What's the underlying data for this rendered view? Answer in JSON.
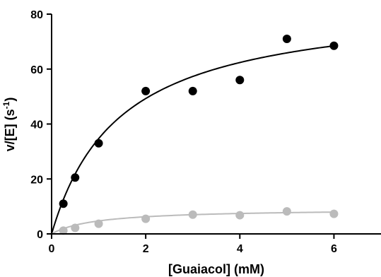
{
  "chart_data": {
    "type": "scatter",
    "xlabel": "[Guaiacol] (mM)",
    "ylabel_main": "v/[E] (s",
    "ylabel_sup": "-1",
    "ylabel_tail": ")",
    "xlim": [
      0,
      7
    ],
    "ylim": [
      0,
      80
    ],
    "x_ticks": [
      0,
      2,
      4,
      6
    ],
    "y_ticks": [
      0,
      20,
      40,
      60,
      80
    ],
    "grid": false,
    "series": [
      {
        "color": "#000000",
        "points": [
          {
            "x": 0.25,
            "y": 11
          },
          {
            "x": 0.5,
            "y": 20.5
          },
          {
            "x": 1,
            "y": 33
          },
          {
            "x": 2,
            "y": 52
          },
          {
            "x": 3,
            "y": 52
          },
          {
            "x": 4,
            "y": 56
          },
          {
            "x": 5,
            "y": 71
          },
          {
            "x": 6,
            "y": 68.5
          }
        ],
        "fit": {
          "model": "michaelis-menten",
          "vmax": 85,
          "km": 1.45,
          "x_max": 6
        }
      },
      {
        "color": "#bbbbbb",
        "points": [
          {
            "x": 0.25,
            "y": 1.2
          },
          {
            "x": 0.5,
            "y": 2.2
          },
          {
            "x": 1,
            "y": 3.7
          },
          {
            "x": 2,
            "y": 5.5
          },
          {
            "x": 3,
            "y": 7
          },
          {
            "x": 4,
            "y": 6.8
          },
          {
            "x": 5,
            "y": 8.2
          },
          {
            "x": 6,
            "y": 7.3
          }
        ],
        "fit": {
          "model": "michaelis-menten",
          "vmax": 9.2,
          "km": 0.95,
          "x_max": 6
        }
      }
    ]
  }
}
